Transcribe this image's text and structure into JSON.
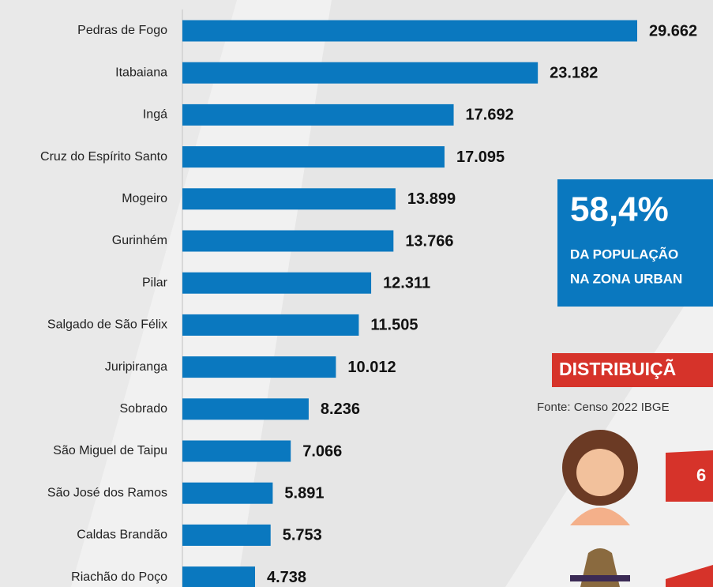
{
  "chart_data": {
    "type": "bar",
    "orientation": "horizontal",
    "color": "#0a78bf",
    "categories": [
      "Pedras de Fogo",
      "Itabaiana",
      "Ingá",
      "Cruz do Espírito Santo",
      "Mogeiro",
      "Gurinhém",
      "Pilar",
      "Salgado de São Félix",
      "Juripiranga",
      "Sobrado",
      "São Miguel de Taipu",
      "São José dos Ramos",
      "Caldas Brandão",
      "Riachão do Poço"
    ],
    "values": [
      29662,
      23182,
      17692,
      17095,
      13899,
      13766,
      12311,
      11505,
      10012,
      8236,
      7066,
      5891,
      5753,
      4738
    ],
    "value_labels": [
      "29.662",
      "23.182",
      "17.692",
      "17.095",
      "13.899",
      "13.766",
      "12.311",
      "11.505",
      "10.012",
      "8.236",
      "7.066",
      "5.891",
      "5.753",
      "4.738"
    ]
  },
  "panel": {
    "highlight": "58,4%",
    "highlight_lines": [
      "DA POPULAÇÃO",
      "NA ZONA URBAN"
    ],
    "banner": "DISTRIBUIÇÃ",
    "source": "Fonte: Censo 2022 IBGE",
    "badge": "6"
  }
}
